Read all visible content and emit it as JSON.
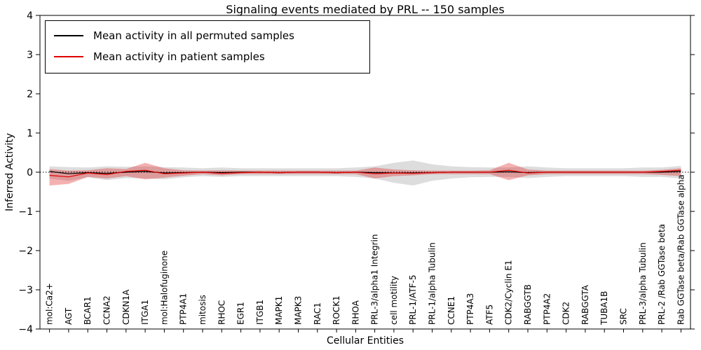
{
  "chart_data": {
    "type": "line",
    "title": "Signaling events mediated by PRL -- 150 samples",
    "xlabel": "Cellular Entities",
    "ylabel": "Inferred Activity",
    "ylim": [
      -4,
      4
    ],
    "yticks": [
      4,
      3,
      2,
      1,
      0,
      -1,
      -2,
      -3,
      -4
    ],
    "grid": false,
    "legend_position": "upper left",
    "zero_line": true,
    "categories": [
      "mol:Ca2+",
      "AGT",
      "BCAR1",
      "CCNA2",
      "CDKN1A",
      "ITGA1",
      "mol:Halofuginone",
      "PTP4A1",
      "mitosis",
      "RHOC",
      "EGR1",
      "ITGB1",
      "MAPK1",
      "MAPK3",
      "RAC1",
      "ROCK1",
      "RHOA",
      "PRL-3/alpha1 Integrin",
      "cell motility",
      "PRL-1/ATF-5",
      "PRL-1/alpha Tubulin",
      "CCNE1",
      "PTP4A3",
      "ATF5",
      "CDK2/Cyclin E1",
      "RABGGTB",
      "PTP4A2",
      "CDK2",
      "RABGGTA",
      "TUBA1B",
      "SRC",
      "PRL-3/alpha Tubulin",
      "PRL-2 /Rab GGTase beta",
      "Rab GGTase beta/Rab GGTase alpha"
    ],
    "series": [
      {
        "name": "Mean activity in all permuted samples",
        "color": "#000000",
        "values": [
          0.02,
          -0.04,
          -0.01,
          -0.03,
          0.0,
          0.02,
          -0.02,
          -0.01,
          0.0,
          -0.01,
          0.0,
          0.0,
          -0.01,
          0.0,
          0.0,
          -0.01,
          0.0,
          -0.01,
          -0.02,
          -0.02,
          -0.01,
          0.0,
          0.0,
          0.0,
          0.01,
          -0.01,
          0.0,
          0.0,
          0.0,
          0.0,
          0.0,
          0.0,
          0.0,
          0.02
        ]
      },
      {
        "name": "Mean activity in patient samples",
        "color": "#e00000",
        "values": [
          -0.08,
          -0.12,
          -0.02,
          -0.06,
          0.02,
          0.05,
          -0.04,
          -0.02,
          0.0,
          -0.03,
          -0.01,
          0.0,
          -0.01,
          0.0,
          0.0,
          -0.01,
          0.0,
          -0.04,
          -0.02,
          -0.03,
          -0.01,
          0.0,
          0.0,
          0.0,
          0.05,
          -0.02,
          0.0,
          0.0,
          0.0,
          0.0,
          0.0,
          0.0,
          0.02,
          0.05
        ]
      }
    ],
    "bands": [
      {
        "name": "permuted-range",
        "color": "rgba(120,120,120,0.25)",
        "upper": [
          0.15,
          0.13,
          0.12,
          0.15,
          0.14,
          0.15,
          0.13,
          0.12,
          0.1,
          0.12,
          0.1,
          0.1,
          0.1,
          0.1,
          0.1,
          0.1,
          0.12,
          0.15,
          0.24,
          0.3,
          0.2,
          0.15,
          0.13,
          0.12,
          0.12,
          0.15,
          0.12,
          0.1,
          0.1,
          0.1,
          0.1,
          0.12,
          0.12,
          0.16
        ],
        "lower": [
          -0.16,
          -0.22,
          -0.13,
          -0.2,
          -0.15,
          -0.16,
          -0.18,
          -0.13,
          -0.1,
          -0.12,
          -0.1,
          -0.1,
          -0.1,
          -0.1,
          -0.1,
          -0.1,
          -0.12,
          -0.16,
          -0.27,
          -0.34,
          -0.22,
          -0.16,
          -0.13,
          -0.12,
          -0.12,
          -0.15,
          -0.12,
          -0.1,
          -0.1,
          -0.1,
          -0.1,
          -0.12,
          -0.12,
          -0.16
        ]
      },
      {
        "name": "patient-range",
        "color": "rgba(224,32,32,0.35)",
        "upper": [
          0.08,
          0.04,
          0.05,
          0.1,
          0.08,
          0.24,
          0.1,
          0.05,
          0.04,
          0.05,
          0.04,
          0.04,
          0.04,
          0.04,
          0.04,
          0.04,
          0.04,
          0.12,
          0.07,
          0.05,
          0.04,
          0.04,
          0.04,
          0.05,
          0.24,
          0.07,
          0.04,
          0.04,
          0.04,
          0.04,
          0.04,
          0.04,
          0.06,
          0.1
        ],
        "lower": [
          -0.34,
          -0.3,
          -0.12,
          -0.16,
          -0.1,
          -0.18,
          -0.14,
          -0.09,
          -0.05,
          -0.08,
          -0.05,
          -0.05,
          -0.05,
          -0.05,
          -0.05,
          -0.05,
          -0.05,
          -0.16,
          -0.1,
          -0.08,
          -0.05,
          -0.05,
          -0.05,
          -0.05,
          -0.2,
          -0.08,
          -0.05,
          -0.05,
          -0.05,
          -0.05,
          -0.05,
          -0.05,
          -0.07,
          -0.1
        ]
      }
    ]
  }
}
